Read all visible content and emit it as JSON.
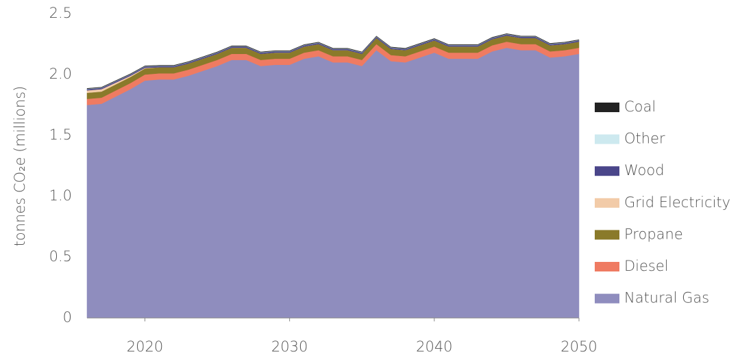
{
  "chart_data": {
    "type": "stacked_area",
    "ylabel": "tonnes CO₂e (millions)",
    "x": [
      2016,
      2017,
      2018,
      2019,
      2020,
      2021,
      2022,
      2023,
      2024,
      2025,
      2026,
      2027,
      2028,
      2029,
      2030,
      2031,
      2032,
      2033,
      2034,
      2035,
      2036,
      2037,
      2038,
      2039,
      2040,
      2041,
      2042,
      2043,
      2044,
      2045,
      2046,
      2047,
      2048,
      2049,
      2050
    ],
    "xlim": [
      2016,
      2050
    ],
    "xticks": [
      2020,
      2030,
      2040,
      2050
    ],
    "ylim": [
      0,
      2.5
    ],
    "yticks": [
      0,
      0.5,
      {
        "value": 1,
        "label": "1.0"
      },
      1.5,
      {
        "value": 2,
        "label": "2.0"
      },
      2.5
    ],
    "series": [
      {
        "name": "Natural Gas",
        "color": "#8f8dbe",
        "values": [
          1.75,
          1.76,
          1.82,
          1.88,
          1.95,
          1.96,
          1.96,
          1.99,
          2.03,
          2.07,
          2.12,
          2.12,
          2.07,
          2.08,
          2.08,
          2.13,
          2.15,
          2.1,
          2.1,
          2.07,
          2.2,
          2.11,
          2.1,
          2.14,
          2.18,
          2.13,
          2.13,
          2.13,
          2.19,
          2.22,
          2.2,
          2.2,
          2.14,
          2.15,
          2.17
        ]
      },
      {
        "name": "Diesel",
        "color": "#ef7b62",
        "values": [
          0.05,
          0.05,
          0.05,
          0.05,
          0.05,
          0.05,
          0.05,
          0.05,
          0.05,
          0.05,
          0.05,
          0.05,
          0.05,
          0.05,
          0.05,
          0.05,
          0.05,
          0.05,
          0.05,
          0.05,
          0.05,
          0.05,
          0.05,
          0.05,
          0.05,
          0.05,
          0.05,
          0.05,
          0.05,
          0.05,
          0.05,
          0.05,
          0.05,
          0.05,
          0.05
        ]
      },
      {
        "name": "Propane",
        "color": "#8a7a2a",
        "values": [
          0.05,
          0.05,
          0.05,
          0.05,
          0.05,
          0.05,
          0.05,
          0.05,
          0.05,
          0.05,
          0.05,
          0.05,
          0.05,
          0.05,
          0.05,
          0.05,
          0.05,
          0.05,
          0.05,
          0.05,
          0.05,
          0.05,
          0.05,
          0.05,
          0.05,
          0.05,
          0.05,
          0.05,
          0.05,
          0.05,
          0.05,
          0.05,
          0.05,
          0.05,
          0.05
        ]
      },
      {
        "name": "Grid Electricity",
        "color": "#f2cba8",
        "values": [
          0.02,
          0.02,
          0.015,
          0.01,
          0.005,
          0,
          0,
          0,
          0,
          0,
          0,
          0,
          0,
          0,
          0,
          0,
          0,
          0,
          0,
          0,
          0,
          0,
          0,
          0,
          0,
          0,
          0,
          0,
          0,
          0,
          0,
          0,
          0,
          0,
          0
        ]
      },
      {
        "name": "Wood",
        "color": "#4a468a",
        "values": [
          0.01,
          0.01,
          0.01,
          0.01,
          0.01,
          0.01,
          0.01,
          0.01,
          0.01,
          0.01,
          0.01,
          0.01,
          0.01,
          0.01,
          0.01,
          0.01,
          0.01,
          0.01,
          0.01,
          0.01,
          0.01,
          0.01,
          0.01,
          0.01,
          0.01,
          0.01,
          0.01,
          0.01,
          0.01,
          0.01,
          0.01,
          0.01,
          0.01,
          0.01,
          0.01
        ]
      },
      {
        "name": "Other",
        "color": "#cde9ef",
        "values": [
          0.003,
          0.003,
          0.003,
          0.003,
          0.003,
          0.003,
          0.003,
          0.003,
          0.003,
          0.003,
          0.003,
          0.003,
          0.003,
          0.003,
          0.003,
          0.003,
          0.003,
          0.003,
          0.003,
          0.003,
          0.003,
          0.003,
          0.003,
          0.003,
          0.003,
          0.003,
          0.003,
          0.003,
          0.003,
          0.003,
          0.003,
          0.003,
          0.003,
          0.003,
          0.003
        ]
      },
      {
        "name": "Coal",
        "color": "#222222",
        "values": [
          0.003,
          0.003,
          0.003,
          0.003,
          0.003,
          0.003,
          0.003,
          0.003,
          0.003,
          0.003,
          0.003,
          0.003,
          0.003,
          0.003,
          0.003,
          0.003,
          0.003,
          0.003,
          0.003,
          0.003,
          0.003,
          0.003,
          0.003,
          0.003,
          0.003,
          0.003,
          0.003,
          0.003,
          0.003,
          0.003,
          0.003,
          0.003,
          0.003,
          0.003,
          0.003
        ]
      }
    ],
    "legend": "right"
  }
}
